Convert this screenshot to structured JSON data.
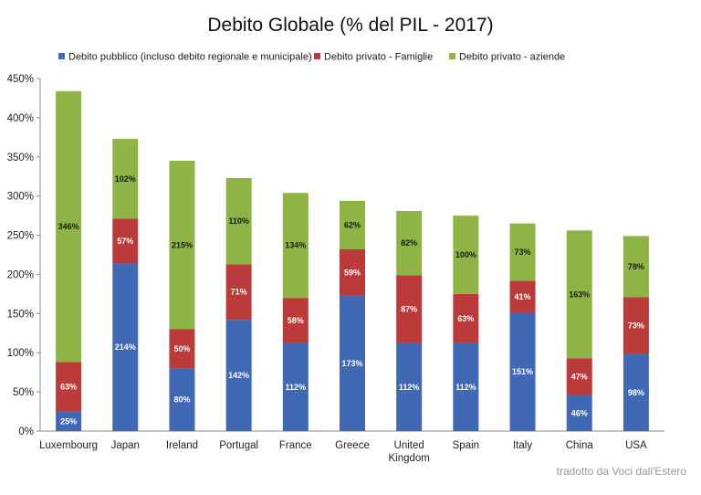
{
  "chart_data": {
    "type": "bar",
    "stacked": true,
    "title": "Debito Globale (% del PIL - 2017)",
    "categories": [
      "Luxembourg",
      "Japan",
      "Ireland",
      "Portugal",
      "France",
      "Greece",
      "United Kingdom",
      "Spain",
      "Italy",
      "China",
      "USA"
    ],
    "series": [
      {
        "name": "Debito pubblico (incluso debito regionale e municipale)",
        "color": "#4068b4",
        "values": [
          25,
          214,
          80,
          142,
          112,
          173,
          112,
          112,
          151,
          46,
          98
        ],
        "labels": [
          "25%",
          "214%",
          "80%",
          "142%",
          "112%",
          "173%",
          "112%",
          "112%",
          "151%",
          "46%",
          "98%"
        ],
        "label_color": "#ffffff"
      },
      {
        "name": "Debito privato - Famiglie",
        "color": "#bb3a3a",
        "values": [
          63,
          57,
          50,
          71,
          58,
          59,
          87,
          63,
          41,
          47,
          73
        ],
        "labels": [
          "63%",
          "57%",
          "50%",
          "71%",
          "58%",
          "59%",
          "87%",
          "63%",
          "41%",
          "47%",
          "73%"
        ],
        "label_color": "#ffffff"
      },
      {
        "name": "Debito privato - aziende",
        "color": "#8db445",
        "values": [
          346,
          102,
          215,
          110,
          134,
          62,
          82,
          100,
          73,
          163,
          78
        ],
        "labels": [
          "346%",
          "102%",
          "215%",
          "110%",
          "134%",
          "62%",
          "82%",
          "100%",
          "73%",
          "163%",
          "78%"
        ],
        "label_color": "#1a1a1a"
      }
    ],
    "ylim": [
      0,
      450
    ],
    "yticks": [
      "0%",
      "50%",
      "100%",
      "150%",
      "200%",
      "250%",
      "300%",
      "350%",
      "400%",
      "450%"
    ],
    "xlabel": "",
    "ylabel": "",
    "grid": false,
    "legend_position": "top"
  },
  "credit": "tradotto da Voci dall'Estero"
}
